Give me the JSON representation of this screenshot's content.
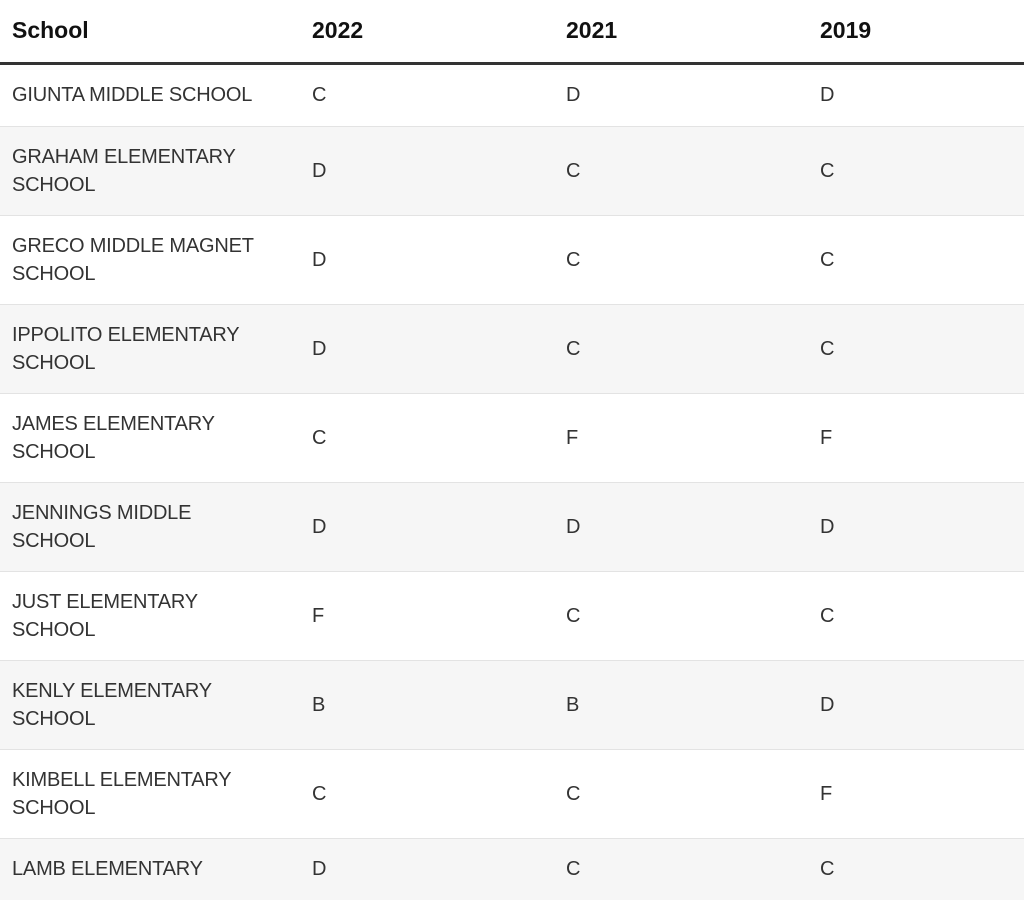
{
  "table": {
    "headers": [
      "School",
      "2022",
      "2021",
      "2019"
    ],
    "rows": [
      {
        "school": "GIUNTA MIDDLE SCHOOL",
        "g2022": "C",
        "g2021": "D",
        "g2019": "D"
      },
      {
        "school": "GRAHAM ELEMENTARY SCHOOL",
        "g2022": "D",
        "g2021": "C",
        "g2019": "C"
      },
      {
        "school": "GRECO MIDDLE MAGNET SCHOOL",
        "g2022": "D",
        "g2021": "C",
        "g2019": "C"
      },
      {
        "school": "IPPOLITO ELEMENTARY SCHOOL",
        "g2022": "D",
        "g2021": "C",
        "g2019": "C"
      },
      {
        "school": "JAMES ELEMENTARY SCHOOL",
        "g2022": "C",
        "g2021": "F",
        "g2019": "F"
      },
      {
        "school": "JENNINGS MIDDLE SCHOOL",
        "g2022": "D",
        "g2021": "D",
        "g2019": "D"
      },
      {
        "school": "JUST ELEMENTARY SCHOOL",
        "g2022": "F",
        "g2021": "C",
        "g2019": "C"
      },
      {
        "school": "KENLY ELEMENTARY SCHOOL",
        "g2022": "B",
        "g2021": "B",
        "g2019": "D"
      },
      {
        "school": "KIMBELL ELEMENTARY SCHOOL",
        "g2022": "C",
        "g2021": "C",
        "g2019": "F"
      },
      {
        "school": "LAMB ELEMENTARY",
        "g2022": "D",
        "g2021": "C",
        "g2019": "C"
      }
    ]
  }
}
